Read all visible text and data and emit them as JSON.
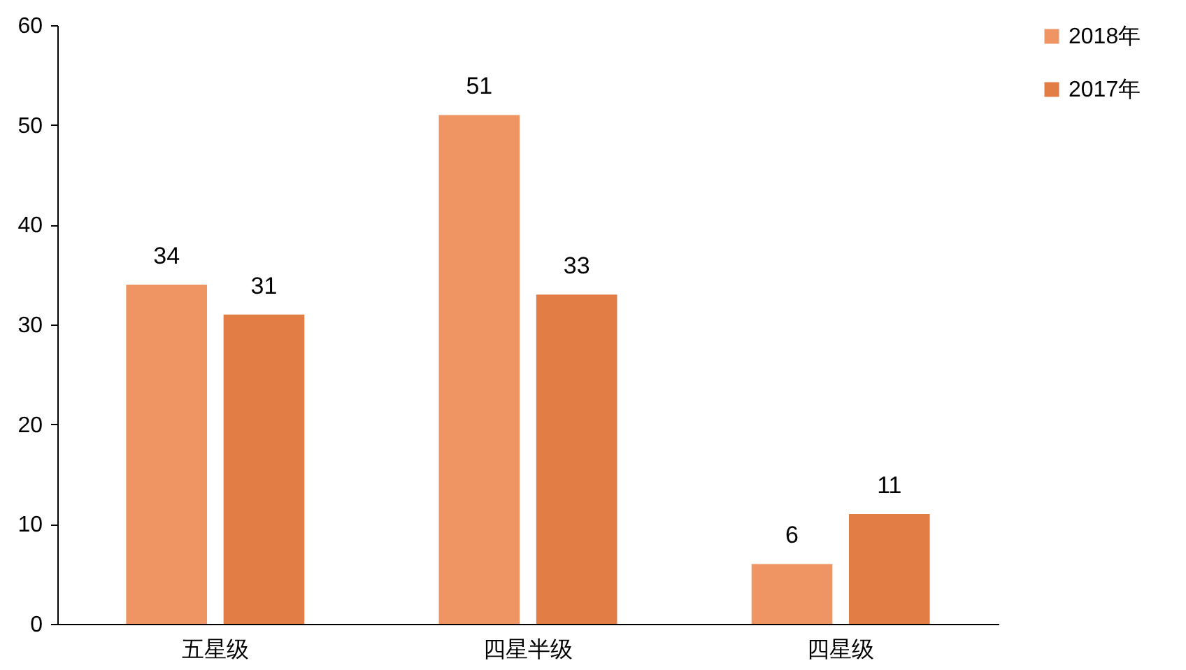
{
  "chart_data": {
    "type": "bar",
    "categories": [
      "五星级",
      "四星半级",
      "四星级"
    ],
    "series": [
      {
        "name": "2018年",
        "color": "#ee9563",
        "values": [
          34,
          51,
          6
        ]
      },
      {
        "name": "2017年",
        "color": "#e27d45",
        "values": [
          31,
          33,
          11
        ]
      }
    ],
    "ylim": [
      0,
      60
    ],
    "yticks": [
      0,
      10,
      20,
      30,
      40,
      50,
      60
    ],
    "grid": false,
    "legend": "right",
    "data_labels": true
  }
}
